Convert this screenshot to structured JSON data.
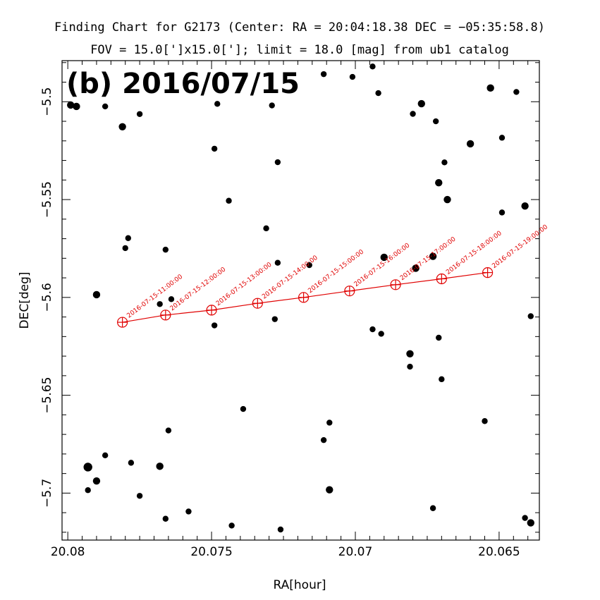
{
  "titles": {
    "line1": "Finding Chart for G2173 (Center: RA = 20:04:18.38 DEC = −05:35:58.8)",
    "line2": "FOV = 15.0[']x15.0[']; limit = 18.0 [mag] from ub1 catalog"
  },
  "chart_data": {
    "type": "scatter",
    "panel_label": "(b) 2016/07/15",
    "xlabel": "RA[hour]",
    "ylabel": "DEC[deg]",
    "xlim": [
      20.0802,
      20.0636
    ],
    "ylim": [
      -5.724,
      -5.479
    ],
    "x_reversed": true,
    "x_ticks": [
      20.08,
      20.075,
      20.07,
      20.065
    ],
    "x_tick_labels": [
      "20.08",
      "20.075",
      "20.07",
      "20.065"
    ],
    "y_ticks": [
      -5.5,
      -5.55,
      -5.6,
      -5.65,
      -5.7
    ],
    "y_tick_labels": [
      "−5.5",
      "−5.55",
      "−5.6",
      "−5.65",
      "−5.7"
    ],
    "colors": {
      "stars": "#000000",
      "track": "#e00000",
      "frame": "#000000"
    },
    "stars": [
      {
        "ra": 20.0799,
        "dec": -5.5017,
        "s": 3
      },
      {
        "ra": 20.0797,
        "dec": -5.5024,
        "s": 3
      },
      {
        "ra": 20.0787,
        "dec": -5.5024,
        "s": 2
      },
      {
        "ra": 20.0781,
        "dec": -5.5128,
        "s": 3
      },
      {
        "ra": 20.0775,
        "dec": -5.5063,
        "s": 2
      },
      {
        "ra": 20.079,
        "dec": -5.5986,
        "s": 3
      },
      {
        "ra": 20.0779,
        "dec": -5.5697,
        "s": 2
      },
      {
        "ra": 20.078,
        "dec": -5.5748,
        "s": 2
      },
      {
        "ra": 20.0766,
        "dec": -5.5756,
        "s": 2
      },
      {
        "ra": 20.0764,
        "dec": -5.6009,
        "s": 2
      },
      {
        "ra": 20.0768,
        "dec": -5.6034,
        "s": 2
      },
      {
        "ra": 20.0748,
        "dec": -5.5011,
        "s": 2
      },
      {
        "ra": 20.0749,
        "dec": -5.524,
        "s": 2
      },
      {
        "ra": 20.0744,
        "dec": -5.5506,
        "s": 2
      },
      {
        "ra": 20.0729,
        "dec": -5.5019,
        "s": 2
      },
      {
        "ra": 20.0727,
        "dec": -5.5309,
        "s": 2
      },
      {
        "ra": 20.0731,
        "dec": -5.5647,
        "s": 2
      },
      {
        "ra": 20.0727,
        "dec": -5.5823,
        "s": 2
      },
      {
        "ra": 20.0716,
        "dec": -5.5835,
        "s": 2
      },
      {
        "ra": 20.0711,
        "dec": -5.4859,
        "s": 2
      },
      {
        "ra": 20.0701,
        "dec": -5.4873,
        "s": 2
      },
      {
        "ra": 20.0694,
        "dec": -5.482,
        "s": 2
      },
      {
        "ra": 20.0692,
        "dec": -5.4956,
        "s": 2
      },
      {
        "ra": 20.068,
        "dec": -5.5062,
        "s": 2
      },
      {
        "ra": 20.0677,
        "dec": -5.501,
        "s": 3
      },
      {
        "ra": 20.0672,
        "dec": -5.51,
        "s": 2
      },
      {
        "ra": 20.0673,
        "dec": -5.579,
        "s": 3
      },
      {
        "ra": 20.0679,
        "dec": -5.5851,
        "s": 3
      },
      {
        "ra": 20.069,
        "dec": -5.5795,
        "s": 3
      },
      {
        "ra": 20.0671,
        "dec": -5.5414,
        "s": 3
      },
      {
        "ra": 20.0669,
        "dec": -5.531,
        "s": 2
      },
      {
        "ra": 20.0668,
        "dec": -5.55,
        "s": 3
      },
      {
        "ra": 20.066,
        "dec": -5.5215,
        "s": 3
      },
      {
        "ra": 20.0653,
        "dec": -5.493,
        "s": 3
      },
      {
        "ra": 20.0649,
        "dec": -5.5184,
        "s": 2
      },
      {
        "ra": 20.0644,
        "dec": -5.495,
        "s": 2
      },
      {
        "ra": 20.0641,
        "dec": -5.5533,
        "s": 3
      },
      {
        "ra": 20.0649,
        "dec": -5.5566,
        "s": 2
      },
      {
        "ra": 20.0639,
        "dec": -5.6096,
        "s": 2
      },
      {
        "ra": 20.0671,
        "dec": -5.6206,
        "s": 2
      },
      {
        "ra": 20.067,
        "dec": -5.6418,
        "s": 2
      },
      {
        "ra": 20.0681,
        "dec": -5.6288,
        "s": 3
      },
      {
        "ra": 20.0681,
        "dec": -5.6354,
        "s": 2
      },
      {
        "ra": 20.0694,
        "dec": -5.6163,
        "s": 2
      },
      {
        "ra": 20.0691,
        "dec": -5.6186,
        "s": 2
      },
      {
        "ra": 20.0728,
        "dec": -5.6111,
        "s": 2
      },
      {
        "ra": 20.0749,
        "dec": -5.6143,
        "s": 2
      },
      {
        "ra": 20.0739,
        "dec": -5.657,
        "s": 2
      },
      {
        "ra": 20.0711,
        "dec": -5.6729,
        "s": 2
      },
      {
        "ra": 20.0709,
        "dec": -5.664,
        "s": 2
      },
      {
        "ra": 20.0709,
        "dec": -5.6983,
        "s": 3
      },
      {
        "ra": 20.0726,
        "dec": -5.7186,
        "s": 2
      },
      {
        "ra": 20.0743,
        "dec": -5.7166,
        "s": 2
      },
      {
        "ra": 20.0758,
        "dec": -5.7094,
        "s": 2
      },
      {
        "ra": 20.0766,
        "dec": -5.7131,
        "s": 2
      },
      {
        "ra": 20.0765,
        "dec": -5.668,
        "s": 2
      },
      {
        "ra": 20.0768,
        "dec": -5.6863,
        "s": 3
      },
      {
        "ra": 20.0775,
        "dec": -5.7014,
        "s": 2
      },
      {
        "ra": 20.0778,
        "dec": -5.6845,
        "s": 2
      },
      {
        "ra": 20.0787,
        "dec": -5.6807,
        "s": 2
      },
      {
        "ra": 20.079,
        "dec": -5.6938,
        "s": 3
      },
      {
        "ra": 20.0793,
        "dec": -5.6867,
        "s": 4
      },
      {
        "ra": 20.0793,
        "dec": -5.6985,
        "s": 2
      },
      {
        "ra": 20.0673,
        "dec": -5.7077,
        "s": 2
      },
      {
        "ra": 20.0655,
        "dec": -5.6632,
        "s": 2
      },
      {
        "ra": 20.0641,
        "dec": -5.7127,
        "s": 2
      },
      {
        "ra": 20.0639,
        "dec": -5.7152,
        "s": 3
      }
    ],
    "track": [
      {
        "label": "2016-07-15-11:00:00",
        "ra": 20.0781,
        "dec": -5.6127
      },
      {
        "label": "2016-07-15-12:00:00",
        "ra": 20.0766,
        "dec": -5.609
      },
      {
        "label": "2016-07-15-13:00:00",
        "ra": 20.075,
        "dec": -5.6065
      },
      {
        "label": "2016-07-15-14:00:00",
        "ra": 20.0734,
        "dec": -5.603
      },
      {
        "label": "2016-07-15-15:00:00",
        "ra": 20.0718,
        "dec": -5.6
      },
      {
        "label": "2016-07-15-16:00:00",
        "ra": 20.0702,
        "dec": -5.5967
      },
      {
        "label": "2016-07-15-17:00:00",
        "ra": 20.0686,
        "dec": -5.5935
      },
      {
        "label": "2016-07-15-18:00:00",
        "ra": 20.067,
        "dec": -5.5905
      },
      {
        "label": "2016-07-15-19:00:00",
        "ra": 20.0654,
        "dec": -5.5873
      }
    ]
  }
}
